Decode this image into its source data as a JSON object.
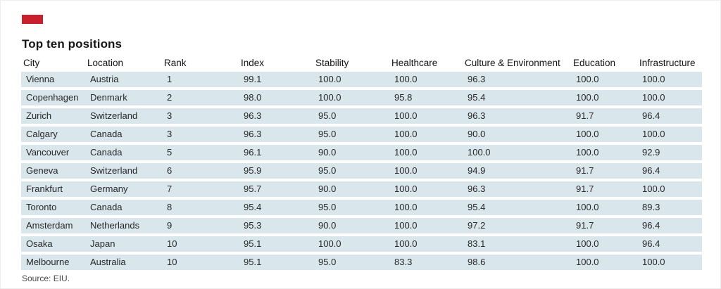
{
  "title": "Top ten positions",
  "source": "Source: EIU.",
  "accent_bar_color": "#c9202e",
  "row_band_color": "#d9e6eb",
  "chart_data": {
    "type": "table",
    "title": "Top ten positions",
    "columns": [
      "City",
      "Location",
      "Rank",
      "Index",
      "Stability",
      "Healthcare",
      "Culture & Environment",
      "Education",
      "Infrastructure"
    ],
    "rows": [
      [
        "Vienna",
        "Austria",
        "1",
        "99.1",
        "100.0",
        "100.0",
        "96.3",
        "100.0",
        "100.0"
      ],
      [
        "Copenhagen",
        "Denmark",
        "2",
        "98.0",
        "100.0",
        "95.8",
        "95.4",
        "100.0",
        "100.0"
      ],
      [
        "Zurich",
        "Switzerland",
        "3",
        "96.3",
        "95.0",
        "100.0",
        "96.3",
        "91.7",
        "96.4"
      ],
      [
        "Calgary",
        "Canada",
        "3",
        "96.3",
        "95.0",
        "100.0",
        "90.0",
        "100.0",
        "100.0"
      ],
      [
        "Vancouver",
        "Canada",
        "5",
        "96.1",
        "90.0",
        "100.0",
        "100.0",
        "100.0",
        "92.9"
      ],
      [
        "Geneva",
        "Switzerland",
        "6",
        "95.9",
        "95.0",
        "100.0",
        "94.9",
        "91.7",
        "96.4"
      ],
      [
        "Frankfurt",
        "Germany",
        "7",
        "95.7",
        "90.0",
        "100.0",
        "96.3",
        "91.7",
        "100.0"
      ],
      [
        "Toronto",
        "Canada",
        "8",
        "95.4",
        "95.0",
        "100.0",
        "95.4",
        "100.0",
        "89.3"
      ],
      [
        "Amsterdam",
        "Netherlands",
        "9",
        "95.3",
        "90.0",
        "100.0",
        "97.2",
        "91.7",
        "96.4"
      ],
      [
        "Osaka",
        "Japan",
        "10",
        "95.1",
        "100.0",
        "100.0",
        "83.1",
        "100.0",
        "96.4"
      ],
      [
        "Melbourne",
        "Australia",
        "10",
        "95.1",
        "95.0",
        "83.3",
        "98.6",
        "100.0",
        "100.0"
      ]
    ],
    "source": "Source: EIU.",
    "layout": {
      "grid": false,
      "row_striping": "all-rows-shaded",
      "number_alignment": "left"
    }
  }
}
